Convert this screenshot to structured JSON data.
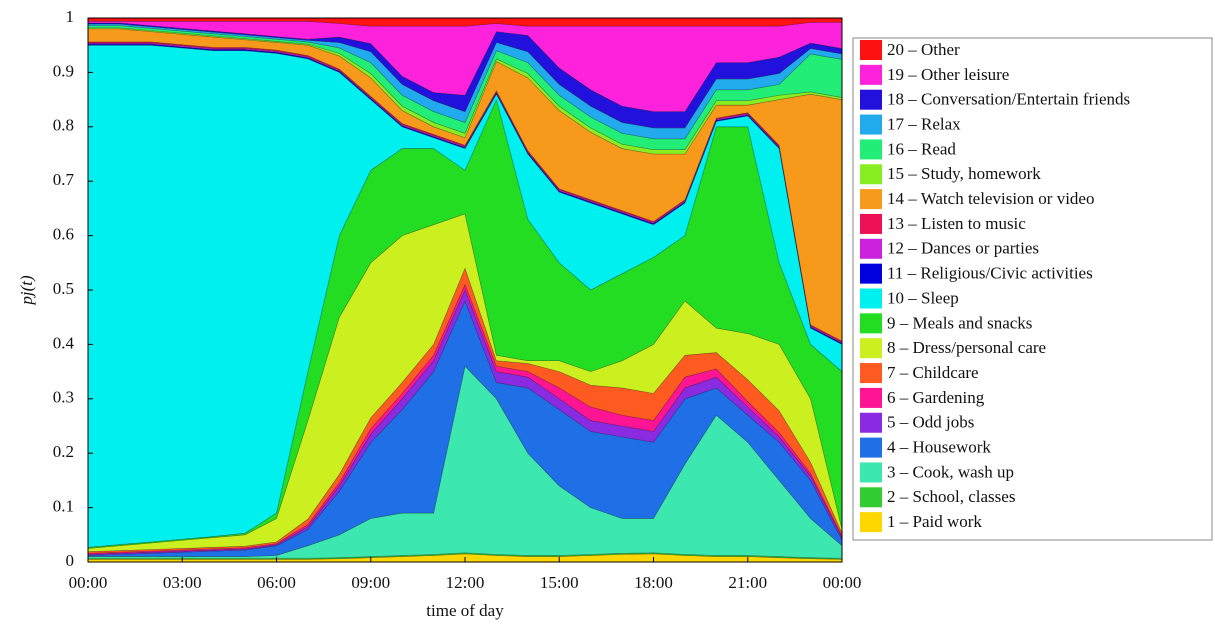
{
  "chart_data": {
    "type": "stacked_area",
    "x_label": "time of day",
    "y_label": "pj(t)",
    "x": [
      0,
      1,
      2,
      3,
      4,
      5,
      6,
      7,
      8,
      9,
      10,
      11,
      12,
      13,
      14,
      15,
      16,
      17,
      18,
      19,
      20,
      21,
      22,
      23,
      24
    ],
    "xlim": [
      0,
      24
    ],
    "xticks": [
      {
        "value": 0,
        "label": "00:00"
      },
      {
        "value": 3,
        "label": "03:00"
      },
      {
        "value": 6,
        "label": "06:00"
      },
      {
        "value": 9,
        "label": "09:00"
      },
      {
        "value": 12,
        "label": "12:00"
      },
      {
        "value": 15,
        "label": "15:00"
      },
      {
        "value": 18,
        "label": "18:00"
      },
      {
        "value": 21,
        "label": "21:00"
      },
      {
        "value": 24,
        "label": "00:00"
      }
    ],
    "ylim": [
      0,
      1
    ],
    "yticks": [
      0,
      0.1,
      0.2,
      0.3,
      0.4,
      0.5,
      0.6,
      0.7,
      0.8,
      0.9,
      1
    ],
    "series": [
      {
        "name": "1 – Paid work",
        "color": "#ffd700",
        "values": [
          0.005,
          0.005,
          0.005,
          0.005,
          0.005,
          0.005,
          0.005,
          0.005,
          0.006,
          0.008,
          0.01,
          0.012,
          0.015,
          0.012,
          0.01,
          0.01,
          0.012,
          0.014,
          0.015,
          0.012,
          0.01,
          0.01,
          0.008,
          0.006,
          0.005
        ]
      },
      {
        "name": "2 – School, classes",
        "color": "#33cc33",
        "values": [
          0.002,
          0.002,
          0.002,
          0.002,
          0.002,
          0.002,
          0.002,
          0.002,
          0.002,
          0.002,
          0.002,
          0.002,
          0.002,
          0.002,
          0.002,
          0.002,
          0.002,
          0.002,
          0.002,
          0.002,
          0.002,
          0.002,
          0.002,
          0.002,
          0.002
        ]
      },
      {
        "name": "3 – Cook, wash up",
        "color": "#3de8b0",
        "values": [
          0.003,
          0.003,
          0.003,
          0.003,
          0.003,
          0.003,
          0.005,
          0.023,
          0.042,
          0.07,
          0.078,
          0.076,
          0.343,
          0.286,
          0.188,
          0.128,
          0.086,
          0.064,
          0.063,
          0.166,
          0.258,
          0.208,
          0.14,
          0.072,
          0.023
        ]
      },
      {
        "name": "4 – Housework",
        "color": "#1f6fe6",
        "values": [
          0.002,
          0.004,
          0.006,
          0.008,
          0.01,
          0.012,
          0.018,
          0.03,
          0.08,
          0.14,
          0.19,
          0.26,
          0.12,
          0.03,
          0.12,
          0.14,
          0.14,
          0.15,
          0.14,
          0.12,
          0.05,
          0.05,
          0.07,
          0.07,
          0.01
        ]
      },
      {
        "name": "5 – Odd jobs",
        "color": "#8a2be2",
        "values": [
          0.002,
          0.002,
          0.002,
          0.002,
          0.002,
          0.002,
          0.002,
          0.005,
          0.01,
          0.015,
          0.02,
          0.02,
          0.02,
          0.02,
          0.02,
          0.02,
          0.02,
          0.02,
          0.02,
          0.02,
          0.02,
          0.015,
          0.01,
          0.008,
          0.005
        ]
      },
      {
        "name": "6 – Gardening",
        "color": "#ff1493",
        "values": [
          0.002,
          0.002,
          0.002,
          0.002,
          0.002,
          0.002,
          0.002,
          0.004,
          0.006,
          0.01,
          0.01,
          0.01,
          0.01,
          0.01,
          0.01,
          0.02,
          0.025,
          0.02,
          0.02,
          0.02,
          0.015,
          0.01,
          0.008,
          0.005,
          0.003
        ]
      },
      {
        "name": "7 – Childcare",
        "color": "#ff5a1f",
        "values": [
          0.003,
          0.003,
          0.003,
          0.003,
          0.003,
          0.003,
          0.003,
          0.01,
          0.015,
          0.02,
          0.02,
          0.02,
          0.03,
          0.01,
          0.015,
          0.03,
          0.04,
          0.05,
          0.05,
          0.04,
          0.03,
          0.04,
          0.04,
          0.02,
          0.005
        ]
      },
      {
        "name": "8 – Dress/personal care",
        "color": "#ccf01f",
        "values": [
          0.006,
          0.009,
          0.012,
          0.015,
          0.018,
          0.021,
          0.043,
          0.181,
          0.289,
          0.285,
          0.27,
          0.22,
          0.1,
          0.01,
          0.005,
          0.02,
          0.025,
          0.05,
          0.09,
          0.1,
          0.045,
          0.085,
          0.122,
          0.117,
          0.007
        ]
      },
      {
        "name": "9 – Meals and snacks",
        "color": "#22dd22",
        "values": [
          0.002,
          0.002,
          0.002,
          0.002,
          0.002,
          0.003,
          0.01,
          0.09,
          0.15,
          0.17,
          0.16,
          0.14,
          0.08,
          0.47,
          0.26,
          0.18,
          0.15,
          0.16,
          0.16,
          0.12,
          0.37,
          0.38,
          0.15,
          0.1,
          0.29
        ]
      },
      {
        "name": "10 – Sleep",
        "color": "#00f0f0",
        "values": [
          0.923,
          0.918,
          0.913,
          0.903,
          0.893,
          0.887,
          0.845,
          0.575,
          0.3,
          0.13,
          0.04,
          0.02,
          0.04,
          0.01,
          0.12,
          0.13,
          0.16,
          0.11,
          0.06,
          0.06,
          0.01,
          0.02,
          0.21,
          0.03,
          0.05
        ]
      },
      {
        "name": "11 – Religious/Civic activities",
        "color": "#0000e0",
        "values": [
          0.002,
          0.002,
          0.002,
          0.002,
          0.002,
          0.002,
          0.002,
          0.002,
          0.002,
          0.002,
          0.002,
          0.002,
          0.002,
          0.002,
          0.002,
          0.002,
          0.002,
          0.002,
          0.002,
          0.002,
          0.002,
          0.002,
          0.002,
          0.002,
          0.002
        ]
      },
      {
        "name": "12 – Dances or parties",
        "color": "#cc22dd",
        "values": [
          0.002,
          0.002,
          0.002,
          0.002,
          0.002,
          0.002,
          0.002,
          0.002,
          0.002,
          0.002,
          0.002,
          0.002,
          0.002,
          0.002,
          0.002,
          0.002,
          0.002,
          0.002,
          0.002,
          0.002,
          0.002,
          0.002,
          0.002,
          0.002,
          0.002
        ]
      },
      {
        "name": "13 – Listen to music",
        "color": "#ee1155",
        "values": [
          0.002,
          0.002,
          0.002,
          0.002,
          0.002,
          0.002,
          0.002,
          0.002,
          0.002,
          0.002,
          0.002,
          0.002,
          0.002,
          0.002,
          0.002,
          0.002,
          0.002,
          0.002,
          0.002,
          0.002,
          0.002,
          0.002,
          0.002,
          0.002,
          0.002
        ]
      },
      {
        "name": "14 – Watch television or video",
        "color": "#f79a1c",
        "values": [
          0.024,
          0.024,
          0.019,
          0.019,
          0.019,
          0.014,
          0.014,
          0.019,
          0.024,
          0.034,
          0.024,
          0.014,
          0.014,
          0.054,
          0.134,
          0.144,
          0.124,
          0.114,
          0.124,
          0.084,
          0.024,
          0.014,
          0.084,
          0.424,
          0.444
        ]
      },
      {
        "name": "15 – Study, homework",
        "color": "#88ee22",
        "values": [
          0.002,
          0.002,
          0.002,
          0.002,
          0.002,
          0.002,
          0.002,
          0.002,
          0.005,
          0.008,
          0.008,
          0.008,
          0.008,
          0.005,
          0.008,
          0.008,
          0.008,
          0.008,
          0.008,
          0.008,
          0.008,
          0.008,
          0.008,
          0.004,
          0.004
        ]
      },
      {
        "name": "16 – Read",
        "color": "#22ee77",
        "values": [
          0.004,
          0.004,
          0.004,
          0.004,
          0.004,
          0.004,
          0.004,
          0.004,
          0.01,
          0.02,
          0.02,
          0.02,
          0.02,
          0.015,
          0.02,
          0.02,
          0.02,
          0.02,
          0.02,
          0.02,
          0.02,
          0.02,
          0.02,
          0.07,
          0.07
        ]
      },
      {
        "name": "17 – Relax",
        "color": "#22aaee",
        "values": [
          0.003,
          0.003,
          0.003,
          0.003,
          0.003,
          0.003,
          0.003,
          0.003,
          0.01,
          0.02,
          0.02,
          0.02,
          0.02,
          0.015,
          0.02,
          0.02,
          0.02,
          0.02,
          0.02,
          0.02,
          0.02,
          0.02,
          0.02,
          0.01,
          0.01
        ]
      },
      {
        "name": "18 – Conversation/Entertain friends",
        "color": "#2211dd",
        "values": [
          0.002,
          0.002,
          0.002,
          0.002,
          0.002,
          0.002,
          0.002,
          0.002,
          0.01,
          0.015,
          0.015,
          0.015,
          0.03,
          0.02,
          0.03,
          0.03,
          0.03,
          0.03,
          0.03,
          0.03,
          0.03,
          0.03,
          0.03,
          0.01,
          0.01
        ]
      },
      {
        "name": "19 – Other leisure",
        "color": "#ff22dd",
        "values": [
          0.003,
          0.003,
          0.008,
          0.013,
          0.018,
          0.023,
          0.028,
          0.033,
          0.025,
          0.032,
          0.092,
          0.122,
          0.127,
          0.015,
          0.017,
          0.077,
          0.117,
          0.147,
          0.157,
          0.157,
          0.067,
          0.067,
          0.057,
          0.038,
          0.048
        ]
      },
      {
        "name": "20 – Other",
        "color": "#ff1111",
        "values": [
          0.006,
          0.006,
          0.006,
          0.006,
          0.006,
          0.006,
          0.006,
          0.006,
          0.01,
          0.015,
          0.015,
          0.015,
          0.015,
          0.01,
          0.015,
          0.015,
          0.015,
          0.015,
          0.015,
          0.015,
          0.015,
          0.015,
          0.015,
          0.008,
          0.008
        ]
      }
    ]
  }
}
